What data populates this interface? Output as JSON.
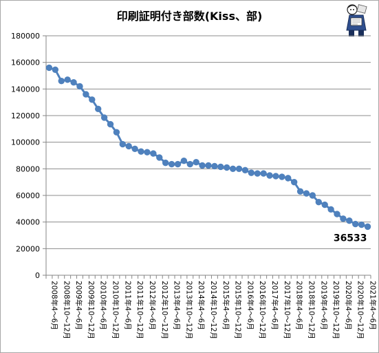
{
  "chart_data": {
    "type": "line",
    "title": "印刷証明付き部数(Kiss、部)",
    "xlabel": "",
    "ylabel": "",
    "ylim": [
      0,
      180000
    ],
    "yticks": [
      "0",
      "20000",
      "40000",
      "60000",
      "80000",
      "100000",
      "120000",
      "140000",
      "160000",
      "180000"
    ],
    "grid": true,
    "legend": "none",
    "x": [
      "2008年4～6月",
      "2008年7～9月",
      "2008年10～12月",
      "2009年1～3月",
      "2009年4～6月",
      "2009年7～9月",
      "2009年10～12月",
      "2010年1～3月",
      "2010年4～6月",
      "2010年7～9月",
      "2010年10～12月",
      "2011年1～3月",
      "2011年4～6月",
      "2011年7～9月",
      "2011年10～12月",
      "2012年1～3月",
      "2012年4～6月",
      "2012年7～9月",
      "2012年10～12月",
      "2013年1～3月",
      "2013年4～6月",
      "2013年7～9月",
      "2013年10～12月",
      "2014年1～3月",
      "2014年4～6月",
      "2014年7～9月",
      "2014年10～12月",
      "2015年1～3月",
      "2015年4～6月",
      "2015年7～9月",
      "2015年10～12月",
      "2016年1～3月",
      "2016年4～6月",
      "2016年7～9月",
      "2016年10～12月",
      "2017年1～3月",
      "2017年4～6月",
      "2017年7～9月",
      "2017年10～12月",
      "2018年1～3月",
      "2018年4～6月",
      "2018年7～9月",
      "2018年10～12月",
      "2019年1～3月",
      "2019年4～6月",
      "2019年7～9月",
      "2019年10～12月",
      "2020年1～3月",
      "2020年4～6月",
      "2020年7～9月",
      "2020年10～12月",
      "2021年1～3月",
      "2021年4～6月"
    ],
    "xticklabels_shown": [
      "2008年4～6月",
      "2008年10～12月",
      "2009年4～6月",
      "2009年10～12月",
      "2010年4～6月",
      "2010年10～12月",
      "2011年4～6月",
      "2011年10～12月",
      "2012年4～6月",
      "2012年10～12月",
      "2013年4～6月",
      "2013年10～12月",
      "2014年4～6月",
      "2014年10～12月",
      "2015年4～6月",
      "2015年10～12月",
      "2016年4～6月",
      "2016年10～12月",
      "2017年4～6月",
      "2017年10～12月",
      "2018年4～6月",
      "2018年10～12月",
      "2019年4～6月",
      "2019年10～12月",
      "2020年4～6月",
      "2020年10～12月",
      "2021年4～6月"
    ],
    "series": [
      {
        "values": [
          156000,
          154500,
          146000,
          147000,
          145000,
          142000,
          136000,
          132000,
          125000,
          118500,
          113500,
          107500,
          98500,
          97000,
          95000,
          93000,
          92500,
          91500,
          88500,
          84500,
          83500,
          83500,
          86000,
          83500,
          85000,
          82500,
          82500,
          82000,
          81500,
          81000,
          80000,
          80000,
          79000,
          77000,
          76500,
          76500,
          75000,
          74500,
          74000,
          73000,
          70000,
          63000,
          61500,
          60000,
          55000,
          53000,
          49500,
          46000,
          42500,
          41000,
          38500,
          38000,
          36533
        ]
      }
    ],
    "annotations": [
      {
        "text": "36533",
        "point": 52
      }
    ],
    "colors": {
      "line": "#4f81bd",
      "marker": "#4f81bd",
      "grid": "#8c8c8c",
      "axis": "#868686",
      "text": "#000000"
    }
  },
  "icons": {
    "mascot": "newspaper-reading-mascot-icon"
  }
}
